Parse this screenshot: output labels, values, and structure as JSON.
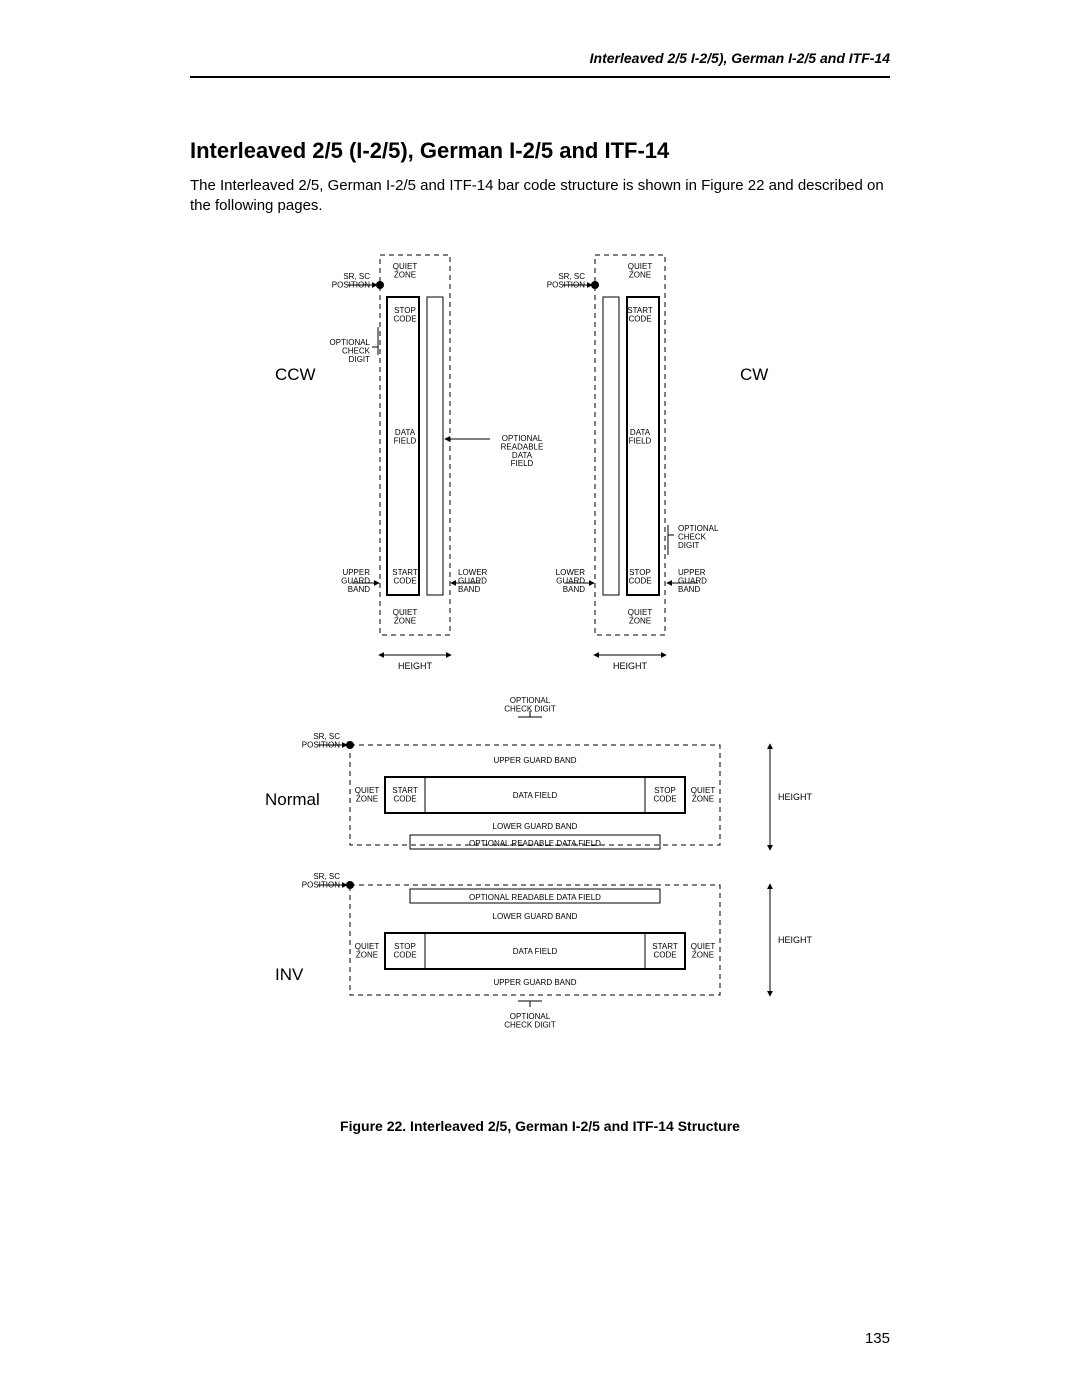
{
  "running_head": "Interleaved 2/5 I-2/5), German I-2/5 and ITF-14",
  "section_title": "Interleaved 2/5 (I-2/5), German I-2/5 and ITF-14",
  "paragraph": "The Interleaved 2/5, German I-2/5 and ITF-14 bar code structure is shown in Figure 22 and described on the following pages.",
  "caption": "Figure 22. Interleaved 2/5, German I-2/5 and ITF-14 Structure",
  "page_number": "135",
  "diagram": {
    "orientation_labels": {
      "ccw": "CCW",
      "cw": "CW",
      "normal": "Normal",
      "inv": "INV"
    },
    "labels": {
      "sr_sc_position": "SR, SC\nPOSITION",
      "quiet_zone": "QUIET\nZONE",
      "stop_code": "STOP\nCODE",
      "start_code": "START\nCODE",
      "data_field": "DATA\nFIELD",
      "data_field_h": "DATA FIELD",
      "optional_check_digit": "OPTIONAL\nCHECK\nDIGIT",
      "optional_check_digit_h": "OPTIONAL\nCHECK DIGIT",
      "optional_readable_data_field": "OPTIONAL\nREADABLE\nDATA\nFIELD",
      "optional_readable_data_field_h": "OPTIONAL READABLE DATA FIELD",
      "upper_guard_band": "UPPER\nGUARD\nBAND",
      "upper_guard_band_h": "UPPER GUARD BAND",
      "lower_guard_band": "LOWER\nGUARD\nBAND",
      "lower_guard_band_h": "LOWER GUARD BAND",
      "height": "HEIGHT"
    },
    "style": {
      "stroke": "#000000",
      "dash": "5,4",
      "tiny_font": 8,
      "small_font": 9,
      "big_font": 17
    }
  }
}
